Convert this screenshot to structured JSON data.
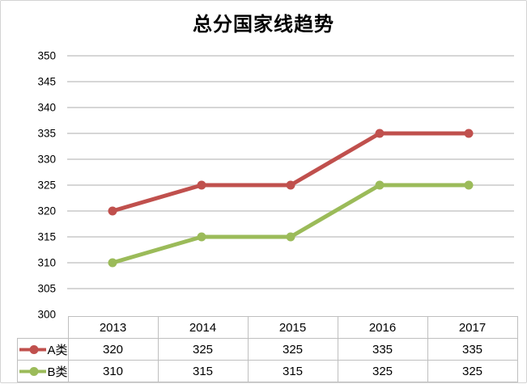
{
  "chart_data": {
    "type": "line",
    "title": "总分国家线趋势",
    "categories": [
      "2013",
      "2014",
      "2015",
      "2016",
      "2017"
    ],
    "series": [
      {
        "name": "A类",
        "values": [
          320,
          325,
          325,
          335,
          335
        ],
        "color": "#c0504d"
      },
      {
        "name": "B类",
        "values": [
          310,
          315,
          315,
          325,
          325
        ],
        "color": "#9bbb59"
      }
    ],
    "xlabel": "",
    "ylabel": "",
    "ylim": [
      300,
      350
    ],
    "ytick_step": 5,
    "yticks": [
      300,
      305,
      310,
      315,
      320,
      325,
      330,
      335,
      340,
      345,
      350
    ],
    "grid": true,
    "marker": "circle",
    "legend_position": "data-table-left",
    "data_table": true
  },
  "colors": {
    "series_a": "#c0504d",
    "series_b": "#9bbb59",
    "gridline": "#c9c9c9",
    "table_border": "#bfbfbf",
    "frame_border": "#d3d3d3",
    "text": "#000000",
    "background": "#ffffff"
  }
}
